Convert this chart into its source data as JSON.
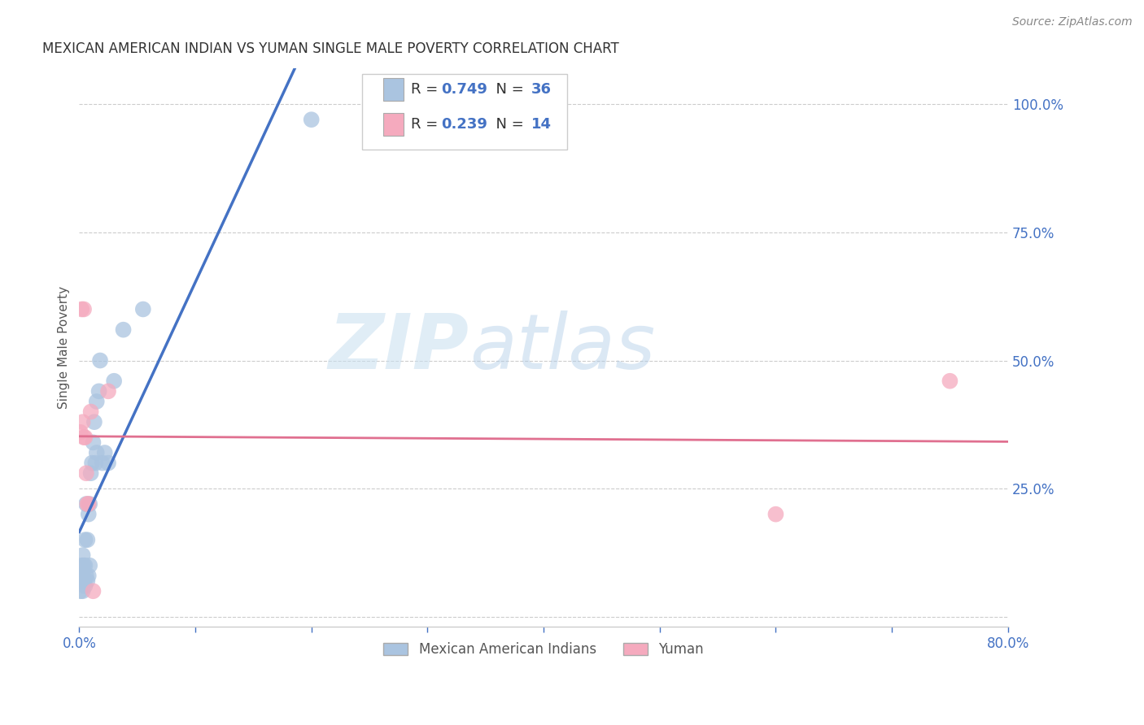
{
  "title": "MEXICAN AMERICAN INDIAN VS YUMAN SINGLE MALE POVERTY CORRELATION CHART",
  "source": "Source: ZipAtlas.com",
  "ylabel": "Single Male Poverty",
  "ytick_labels": [
    "",
    "25.0%",
    "50.0%",
    "75.0%",
    "100.0%"
  ],
  "ytick_values": [
    0.0,
    0.25,
    0.5,
    0.75,
    1.0
  ],
  "xlim": [
    0.0,
    0.8
  ],
  "ylim": [
    -0.02,
    1.07
  ],
  "watermark_zip": "ZIP",
  "watermark_atlas": "atlas",
  "blue_color": "#aac4e0",
  "pink_color": "#f5aabe",
  "line_blue": "#4472c4",
  "line_pink": "#e07090",
  "blue_points_x": [
    0.001,
    0.001,
    0.002,
    0.002,
    0.003,
    0.003,
    0.003,
    0.004,
    0.004,
    0.005,
    0.005,
    0.005,
    0.006,
    0.006,
    0.007,
    0.007,
    0.008,
    0.008,
    0.009,
    0.009,
    0.01,
    0.011,
    0.012,
    0.013,
    0.014,
    0.015,
    0.015,
    0.017,
    0.018,
    0.02,
    0.022,
    0.025,
    0.03,
    0.038,
    0.055,
    0.2
  ],
  "blue_points_y": [
    0.05,
    0.07,
    0.08,
    0.1,
    0.05,
    0.08,
    0.12,
    0.07,
    0.1,
    0.06,
    0.1,
    0.15,
    0.08,
    0.22,
    0.07,
    0.15,
    0.08,
    0.2,
    0.1,
    0.22,
    0.28,
    0.3,
    0.34,
    0.38,
    0.3,
    0.32,
    0.42,
    0.44,
    0.5,
    0.3,
    0.32,
    0.3,
    0.46,
    0.56,
    0.6,
    0.97
  ],
  "pink_points_x": [
    0.001,
    0.002,
    0.003,
    0.004,
    0.004,
    0.005,
    0.006,
    0.007,
    0.008,
    0.01,
    0.012,
    0.025,
    0.6,
    0.75
  ],
  "pink_points_y": [
    0.36,
    0.6,
    0.38,
    0.35,
    0.6,
    0.35,
    0.28,
    0.22,
    0.22,
    0.4,
    0.05,
    0.44,
    0.2,
    0.46
  ],
  "background_color": "#ffffff",
  "grid_color": "#cccccc",
  "axis_color": "#cccccc",
  "title_color": "#333333",
  "tick_color": "#4472c4",
  "legend_text_color": "#333333",
  "legend_value_color": "#4472c4",
  "legend_blue_r": "0.749",
  "legend_blue_n": "36",
  "legend_pink_r": "0.239",
  "legend_pink_n": "14"
}
